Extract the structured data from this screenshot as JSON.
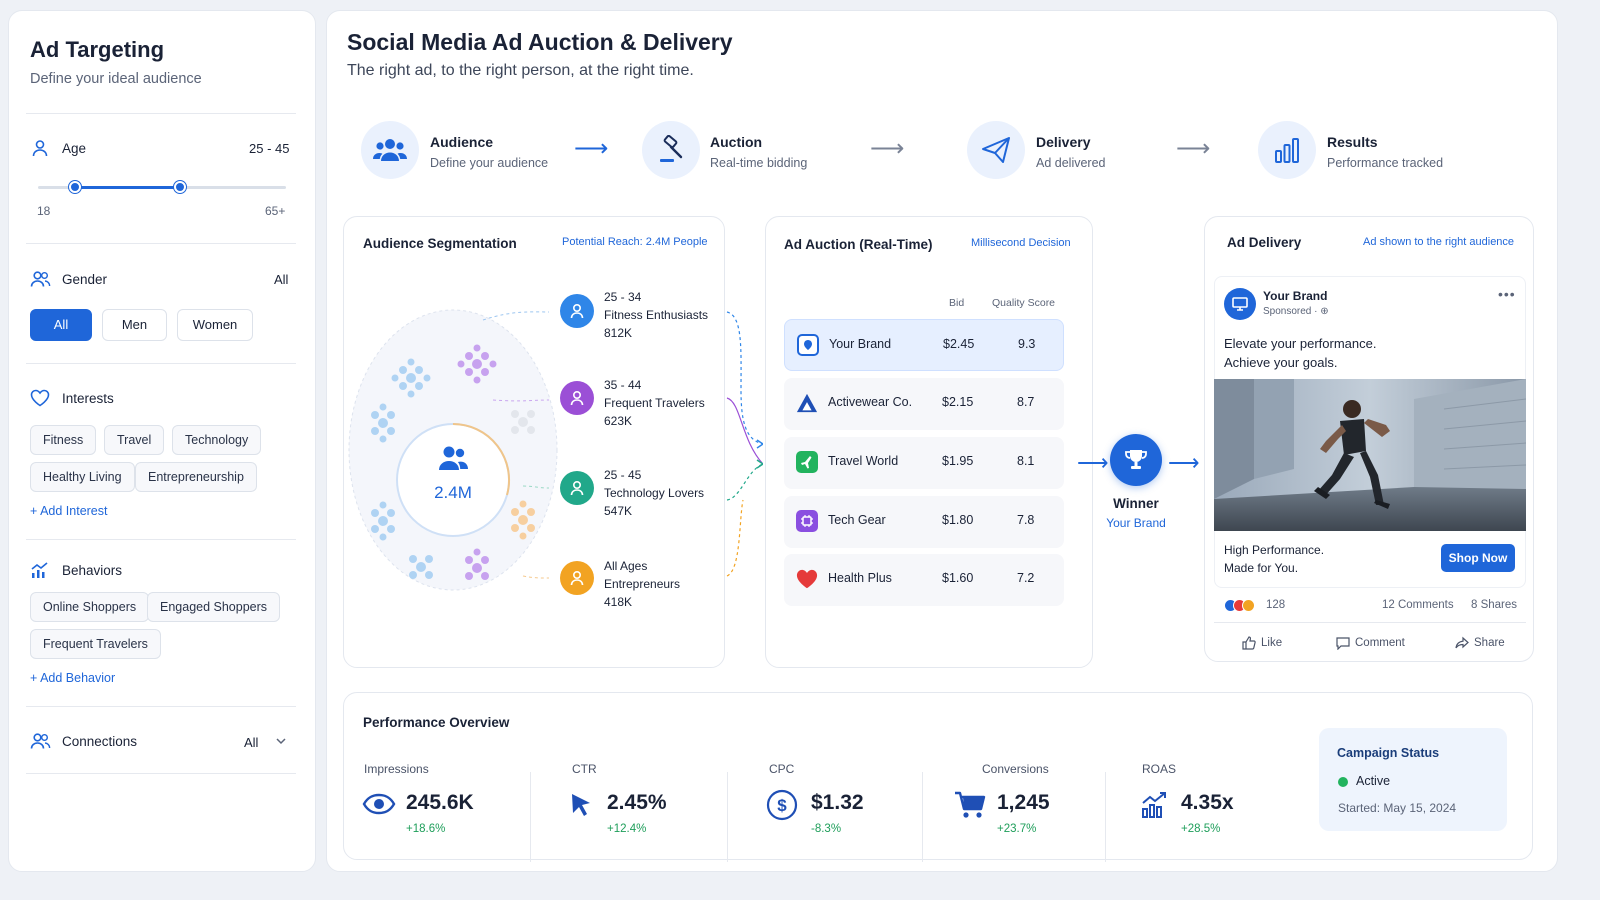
{
  "sidebar": {
    "title": "Ad Targeting",
    "subtitle": "Define your ideal audience",
    "age": {
      "label": "Age",
      "range_text": "25 - 45",
      "min_label": "18",
      "max_label": "65+",
      "low": 25,
      "high": 45,
      "min": 18,
      "max": 65
    },
    "gender": {
      "label": "Gender",
      "value": "All",
      "options": [
        "All",
        "Men",
        "Women"
      ],
      "selected": "All"
    },
    "interests": {
      "label": "Interests",
      "chips": [
        "Fitness",
        "Travel",
        "Technology",
        "Healthy Living",
        "Entrepreneurship"
      ],
      "add_label": "+ Add Interest"
    },
    "behaviors": {
      "label": "Behaviors",
      "chips": [
        "Online Shoppers",
        "Engaged Shoppers",
        "Frequent Travelers"
      ],
      "add_label": "+ Add Behavior"
    },
    "connections": {
      "label": "Connections",
      "value": "All"
    }
  },
  "header": {
    "title": "Social Media Ad Auction & Delivery",
    "subtitle": "The right ad, to the right person, at the right time."
  },
  "steps": [
    {
      "title": "Audience",
      "sub": "Define your audience",
      "icon": "users-icon"
    },
    {
      "title": "Auction",
      "sub": "Real-time bidding",
      "icon": "gavel-icon"
    },
    {
      "title": "Delivery",
      "sub": "Ad delivered",
      "icon": "paper-plane-icon"
    },
    {
      "title": "Results",
      "sub": "Performance tracked",
      "icon": "bar-chart-icon"
    }
  ],
  "segmentation": {
    "title": "Audience Segmentation",
    "reach": "Potential Reach: 2.4M People",
    "total": "2.4M",
    "segments": [
      {
        "age": "25 - 34",
        "name": "Fitness Enthusiasts",
        "count": "812K",
        "color": "#2f86e8"
      },
      {
        "age": "35 - 44",
        "name": "Frequent Travelers",
        "count": "623K",
        "color": "#9b4fd6"
      },
      {
        "age": "25 - 45",
        "name": "Technology Lovers",
        "count": "547K",
        "color": "#21a88a"
      },
      {
        "age": "All Ages",
        "name": "Entrepreneurs",
        "count": "418K",
        "color": "#f2a322"
      }
    ]
  },
  "auction": {
    "title": "Ad Auction (Real-Time)",
    "tag": "Millisecond Decision",
    "col_bid": "Bid",
    "col_qs": "Quality Score",
    "rows": [
      {
        "name": "Your Brand",
        "bid": "$2.45",
        "qs": "9.3",
        "color": "#1f66d9"
      },
      {
        "name": "Activewear Co.",
        "bid": "$2.15",
        "qs": "8.7",
        "color": "#1f4fb5"
      },
      {
        "name": "Travel World",
        "bid": "$1.95",
        "qs": "8.1",
        "color": "#22b35e"
      },
      {
        "name": "Tech Gear",
        "bid": "$1.80",
        "qs": "7.8",
        "color": "#8a4fe0"
      },
      {
        "name": "Health Plus",
        "bid": "$1.60",
        "qs": "7.2",
        "color": "#e53a3a"
      }
    ],
    "winner_label": "Winner",
    "winner_name": "Your Brand"
  },
  "delivery": {
    "title": "Ad Delivery",
    "tag": "Ad shown to the right audience",
    "brand": "Your Brand",
    "sponsored": "Sponsored · ",
    "copy_line1": "Elevate your performance.",
    "copy_line2": "Achieve your goals.",
    "footer_line1": "High Performance.",
    "footer_line2": "Made for You.",
    "cta": "Shop Now",
    "reactions": "128",
    "comments": "12 Comments",
    "shares": "8 Shares",
    "like": "Like",
    "comment": "Comment",
    "share": "Share"
  },
  "performance": {
    "title": "Performance Overview",
    "metrics": [
      {
        "label": "Impressions",
        "value": "245.6K",
        "delta": "+18.6%",
        "icon": "eye-icon"
      },
      {
        "label": "CTR",
        "value": "2.45%",
        "delta": "+12.4%",
        "icon": "cursor-icon"
      },
      {
        "label": "CPC",
        "value": "$1.32",
        "delta": "-8.3%",
        "icon": "dollar-icon"
      },
      {
        "label": "Conversions",
        "value": "1,245",
        "delta": "+23.7%",
        "icon": "cart-icon"
      },
      {
        "label": "ROAS",
        "value": "4.35x",
        "delta": "+28.5%",
        "icon": "growth-chart-icon"
      }
    ],
    "status": {
      "title": "Campaign Status",
      "state": "Active",
      "started": "Started: May 15, 2024"
    }
  },
  "colors": {
    "accent": "#1f66d9",
    "positive": "#1e9e5a",
    "active": "#22b35e"
  }
}
